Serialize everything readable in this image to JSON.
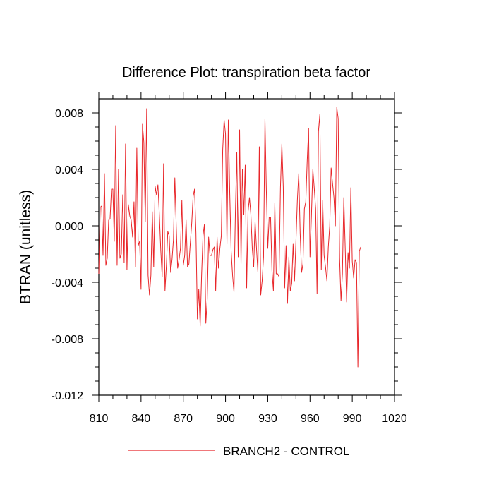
{
  "chart_data": {
    "type": "line",
    "title": "Difference Plot: transpiration beta factor",
    "ylabel": "BTRAN  (unitless)",
    "xlabel": "",
    "xlim": [
      810,
      1020
    ],
    "ylim": [
      -0.012,
      0.009
    ],
    "x_ticks": [
      810,
      840,
      870,
      900,
      930,
      960,
      990,
      1020
    ],
    "x_tick_labels": [
      "810",
      "840",
      "870",
      "900",
      "930",
      "960",
      "990",
      "1020"
    ],
    "y_ticks": [
      -0.012,
      -0.008,
      -0.004,
      0.0,
      0.004,
      0.008
    ],
    "y_tick_labels": [
      "-0.012",
      "-0.008",
      "-0.004",
      "0.000",
      "0.004",
      "0.008"
    ],
    "grid": false,
    "legend_position": "bottom-center",
    "series": [
      {
        "name": "BRANCH2 - CONTROL",
        "color": "#e8262a",
        "x_start": 810,
        "x_step": 1,
        "values": [
          -0.0034,
          0.0013,
          0.0014,
          -0.0021,
          0.0037,
          -0.0028,
          -0.0023,
          0.0004,
          0.0005,
          0.0026,
          0.0026,
          -0.0011,
          0.0071,
          -0.0028,
          0.004,
          -0.0023,
          -0.002,
          0.0022,
          -0.0026,
          0.0058,
          -0.0031,
          0.0015,
          0.0007,
          0.0004,
          -0.0008,
          0.0017,
          -0.0029,
          0.0055,
          -0.0014,
          -0.0011,
          -0.0045,
          0.0072,
          0.0059,
          0.0003,
          0.0083,
          -0.0035,
          -0.0049,
          -0.0035,
          0.001,
          -0.0029,
          0.0028,
          0.0022,
          0.0029,
          0.0008,
          -0.0017,
          -0.0036,
          0.0044,
          -0.0046,
          -0.0028,
          -0.0004,
          -0.0007,
          -0.0033,
          -0.0024,
          -0.001,
          0.0034,
          0.0,
          -0.003,
          -0.0024,
          -0.0016,
          0.0018,
          -0.0028,
          -0.0021,
          0.0004,
          -0.0029,
          -0.0027,
          -0.0012,
          0.0002,
          0.0021,
          0.0026,
          -0.0005,
          -0.0066,
          -0.0045,
          -0.0071,
          -0.0035,
          -0.0007,
          0.0001,
          -0.0069,
          -0.0052,
          -0.0008,
          -0.0021,
          -0.0021,
          -0.0017,
          -0.0015,
          -0.0046,
          -0.0008,
          -0.003,
          -0.0016,
          -0.0007,
          0.0054,
          0.0075,
          0.0065,
          -0.0013,
          0.0075,
          0.0023,
          -0.0018,
          -0.0035,
          -0.0047,
          0.0009,
          0.0052,
          -0.0022,
          0.0068,
          -0.0027,
          0.004,
          0.0008,
          0.0043,
          -0.0044,
          0.001,
          0.002,
          0.0008,
          -0.0016,
          -0.0029,
          0.0003,
          -0.0016,
          -0.0033,
          0.0056,
          -0.0049,
          -0.0039,
          -0.0022,
          0.0076,
          0.0025,
          -0.0016,
          0.0006,
          0.0006,
          -0.0032,
          -0.0046,
          0.0016,
          -0.0034,
          -0.0034,
          -0.0036,
          0.0027,
          0.0058,
          0.0028,
          -0.0044,
          -0.0014,
          -0.0055,
          -0.0022,
          -0.0046,
          -0.0041,
          -0.0013,
          -0.0039,
          -0.0011,
          0.0018,
          0.0037,
          -0.0005,
          -0.0033,
          -0.0027,
          0.0012,
          0.0017,
          0.0046,
          0.0069,
          -0.0022,
          0.0007,
          0.004,
          0.0027,
          0.0012,
          -0.0048,
          0.0067,
          0.0079,
          -0.0031,
          0.0018,
          -0.0021,
          -0.0029,
          -0.0039,
          -0.0015,
          0.0,
          0.0041,
          0.003,
          0.002,
          0.0,
          0.0084,
          0.0076,
          -0.0023,
          -0.0053,
          -0.0034,
          0.002,
          -0.0016,
          -0.0054,
          -0.0019,
          -0.003,
          0.0027,
          -0.0025,
          -0.0037,
          -0.0024,
          -0.0026,
          -0.01,
          -0.0018,
          -0.0015
        ]
      }
    ]
  }
}
